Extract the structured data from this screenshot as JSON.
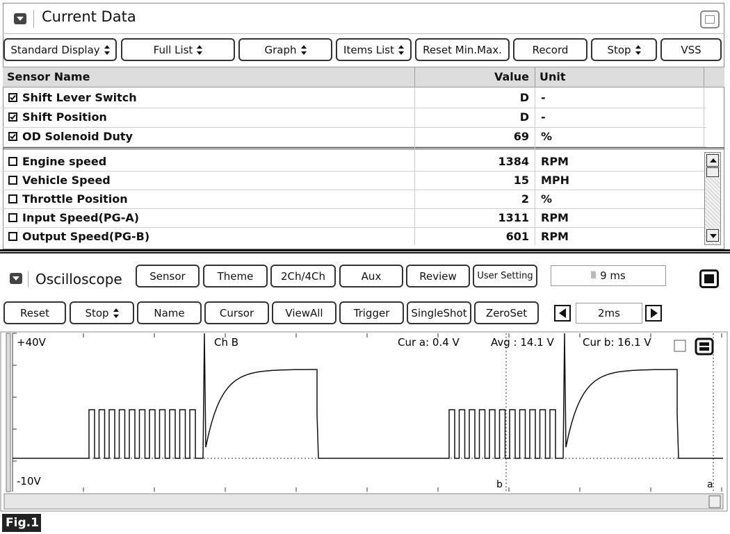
{
  "current_data": {
    "title": "Current Data",
    "toolbar": [
      {
        "label": "Standard Display",
        "dropdown": true
      },
      {
        "label": "Full List",
        "dropdown": true
      },
      {
        "label": "Graph",
        "dropdown": true
      },
      {
        "label": "Items List",
        "dropdown": true
      },
      {
        "label": "Reset Min.Max.",
        "dropdown": false
      },
      {
        "label": "Record",
        "dropdown": false
      },
      {
        "label": "Stop",
        "dropdown": true
      },
      {
        "label": "VSS",
        "dropdown": false
      }
    ],
    "columns": [
      "Sensor Name",
      "Value",
      "Unit"
    ],
    "selected_rows": [
      {
        "name": "Shift Lever Switch",
        "value": "D",
        "unit": "-",
        "checked": true
      },
      {
        "name": "Shift Position",
        "value": "D",
        "unit": "-",
        "checked": true
      },
      {
        "name": "OD Solenoid Duty",
        "value": 69,
        "unit": "%",
        "checked": true
      }
    ],
    "rows": [
      {
        "name": "Engine speed",
        "value": 1384,
        "unit": "RPM",
        "checked": false
      },
      {
        "name": "Vehicle Speed",
        "value": 15,
        "unit": "MPH",
        "checked": false
      },
      {
        "name": "Throttle Position",
        "value": 2,
        "unit": "%",
        "checked": false
      },
      {
        "name": "Input Speed(PG-A)",
        "value": 1311,
        "unit": "RPM",
        "checked": false
      },
      {
        "name": "Output Speed(PG-B)",
        "value": 601,
        "unit": "RPM",
        "checked": false
      }
    ]
  },
  "oscilloscope": {
    "title": "Oscilloscope",
    "buttons_row1": [
      "Sensor",
      "Theme",
      "2Ch/4Ch",
      "Aux",
      "Review",
      "User Setting"
    ],
    "time_display": "9 ms",
    "buttons_row2": [
      {
        "label": "Reset",
        "dropdown": false
      },
      {
        "label": "Stop",
        "dropdown": true
      },
      {
        "label": "Name",
        "dropdown": false
      },
      {
        "label": "Cursor",
        "dropdown": false
      },
      {
        "label": "ViewAll",
        "dropdown": false
      },
      {
        "label": "Trigger",
        "dropdown": false
      },
      {
        "label": "SingleShot",
        "dropdown": false
      },
      {
        "label": "ZeroSet",
        "dropdown": false
      }
    ],
    "time_div": "2ms",
    "scale_top": "+40V",
    "scale_bottom": "-10V",
    "channel": "Ch B",
    "cur_a": "Cur a: 0.4 V",
    "avg": "Avg : 14.1 V",
    "cur_b": "Cur b: 16.1 V",
    "cursor_b_label": "b",
    "cursor_a_label": "a"
  },
  "figure_label": "Fig.1"
}
